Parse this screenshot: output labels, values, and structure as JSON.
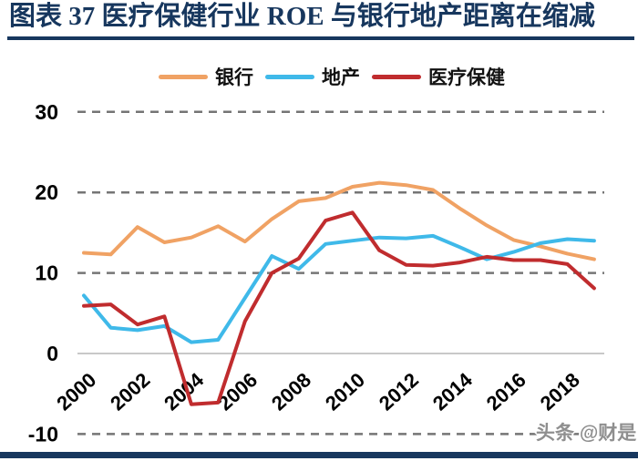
{
  "title": "图表 37 医疗保健行业 ROE 与银行地产距离在缩减",
  "watermark": "头条 @财是",
  "colors": {
    "title_navy": "#17375E",
    "bank": "#F0A264",
    "realestate": "#3FB9E9",
    "healthcare": "#C02C2E",
    "gridline": "#757575",
    "zero_line": "#C8C8C8",
    "axis_label": "#000000"
  },
  "chart_data": {
    "type": "line",
    "title": "图表 37 医疗保健行业 ROE 与银行地产距离在缩减",
    "x": [
      2000,
      2001,
      2002,
      2003,
      2004,
      2005,
      2006,
      2007,
      2008,
      2009,
      2010,
      2011,
      2012,
      2013,
      2014,
      2015,
      2016,
      2017,
      2018,
      2019
    ],
    "series": [
      {
        "name": "银行",
        "key": "bank",
        "values": [
          12.5,
          12.3,
          15.7,
          13.8,
          14.4,
          15.8,
          13.9,
          16.7,
          18.9,
          19.3,
          20.7,
          21.2,
          20.9,
          20.3,
          18.0,
          15.9,
          14.1,
          13.3,
          12.4,
          11.7
        ]
      },
      {
        "name": "地产",
        "key": "realestate",
        "values": [
          7.2,
          3.2,
          2.9,
          3.4,
          1.4,
          1.7,
          6.9,
          12.1,
          10.5,
          13.6,
          14.0,
          14.4,
          14.3,
          14.6,
          13.2,
          11.7,
          12.6,
          13.7,
          14.2,
          14.0
        ]
      },
      {
        "name": "医疗保健",
        "key": "healthcare",
        "values": [
          5.9,
          6.1,
          3.6,
          4.6,
          -6.3,
          -6.1,
          4.0,
          10.0,
          11.8,
          16.5,
          17.5,
          12.8,
          11.0,
          10.9,
          11.3,
          12.0,
          11.6,
          11.6,
          11.1,
          8.1
        ]
      }
    ],
    "ylim": [
      -10,
      30
    ],
    "yticks": [
      -10,
      0,
      10,
      20,
      30
    ],
    "ytick_labels": [
      "-10",
      "0",
      "10",
      "20",
      "30"
    ],
    "xtick_labels": [
      "2000",
      "2002",
      "2004",
      "2006",
      "2008",
      "2010",
      "2012",
      "2014",
      "2016",
      "2018"
    ],
    "grid": "horizontal-dashed",
    "legend_position": "top-center"
  }
}
